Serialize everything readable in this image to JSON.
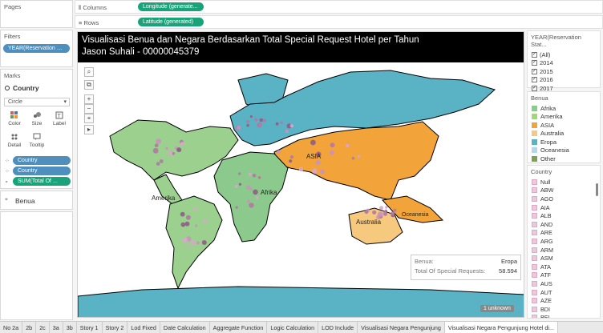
{
  "left": {
    "pages_title": "Pages",
    "filters_title": "Filters",
    "filter_pill": "YEAR(Reservation St..",
    "marks_title": "Marks",
    "marks_layer": "Country",
    "mark_type": "Circle",
    "mark_buttons": [
      "Color",
      "Size",
      "Label",
      "Detail",
      "Tooltip"
    ],
    "mark_pills": [
      "Country",
      "Country",
      "SUM(Total Of ..."
    ],
    "layer2": "Benua"
  },
  "shelves": {
    "columns_label": "Columns",
    "columns_pill": "Longitude (generate...",
    "rows_label": "Rows",
    "rows_pill": "Latitude (generated)"
  },
  "view": {
    "title_line1": "Visualisasi Benua dan Negara Berdasarkan Total Special Request Hotel per Tahun",
    "title_line2": "Jason Suhali - 00000045379",
    "map_labels": {
      "asia": "ASIA",
      "amerika": "Amerika",
      "afrika": "Afrika",
      "australia": "Australia",
      "oceanesia": "Oceanesia"
    },
    "tools": [
      "⌕",
      "⧉",
      "+",
      "−",
      "⌖",
      "▸"
    ],
    "tooltip": {
      "k1": "Benua:",
      "v1": "Eropa",
      "k2": "Total Of Special Requests:",
      "v2": "58.594"
    },
    "unknown": "1 unknown"
  },
  "right": {
    "year_title": "YEAR(Reservation Stat...",
    "years": [
      "(All)",
      "2014",
      "2015",
      "2016",
      "2017"
    ],
    "benua_title": "Benua",
    "benua": [
      {
        "label": "Afrika",
        "color": "#8cc98c"
      },
      {
        "label": "Amerika",
        "color": "#a6d47e"
      },
      {
        "label": "ASIA",
        "color": "#f2a33a"
      },
      {
        "label": "Australia",
        "color": "#f7c97e"
      },
      {
        "label": "Eropa",
        "color": "#5ab3c5"
      },
      {
        "label": "Oceanesia",
        "color": "#b3d9e6"
      },
      {
        "label": "Other",
        "color": "#7fa055"
      }
    ],
    "country_title": "Country",
    "countries": [
      "Null",
      "ABW",
      "AGO",
      "AIA",
      "ALB",
      "AND",
      "ARE",
      "ARG",
      "ARM",
      "ASM",
      "ATA",
      "ATF",
      "AUS",
      "AUT",
      "AZE",
      "BDI",
      "BEL",
      "BEN"
    ]
  },
  "tabs": [
    "No 2a",
    "2b",
    "2c",
    "3a",
    "3b",
    "Story 1",
    "Story 2",
    "Lod Fixed",
    "Date Calculation",
    "Aggregate Function",
    "Logic Calculation",
    "LOD Include",
    "Visualisasi Negara Pengunjung",
    "Visualisasi Negara Pengunjung Hotel di..."
  ]
}
